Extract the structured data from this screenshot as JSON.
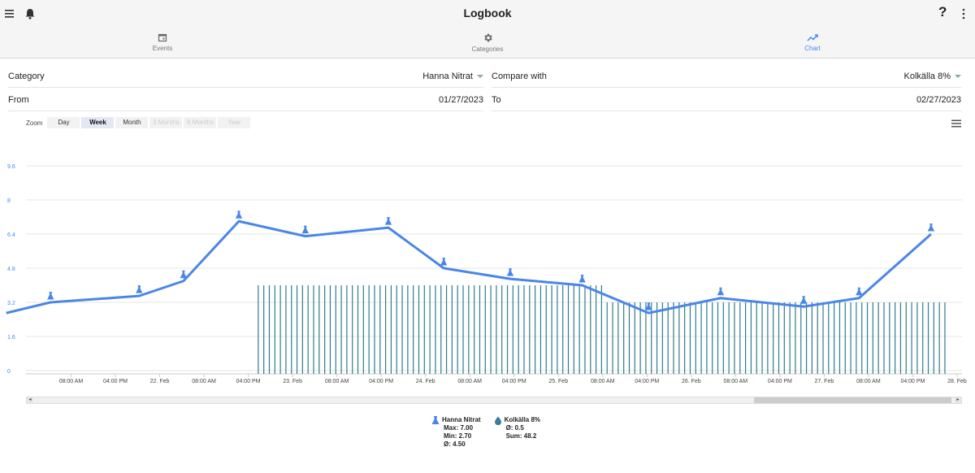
{
  "app": {
    "title": "Logbook"
  },
  "colors": {
    "accent": "#4287f5",
    "line": "#4a86e8",
    "bars": "#2e7d8c"
  },
  "tabs": [
    {
      "label": "Events",
      "icon": "calendar-icon",
      "active": false
    },
    {
      "label": "Categories",
      "icon": "gear-icon",
      "active": false
    },
    {
      "label": "Chart",
      "icon": "trending-up-icon",
      "active": true
    }
  ],
  "form": {
    "category_label": "Category",
    "category_value": "Hanna Nitrat",
    "compare_label": "Compare with",
    "compare_value": "Kolkälla 8%",
    "from_label": "From",
    "from_value": "01/27/2023",
    "to_label": "To",
    "to_value": "02/27/2023"
  },
  "zoom": {
    "label": "Zoom",
    "buttons": [
      {
        "label": "Day",
        "state": "normal"
      },
      {
        "label": "Week",
        "state": "active"
      },
      {
        "label": "Month",
        "state": "normal"
      },
      {
        "label": "3 Months",
        "state": "disabled"
      },
      {
        "label": "6 Months",
        "state": "disabled"
      },
      {
        "label": "Year",
        "state": "disabled"
      }
    ]
  },
  "chart_data": {
    "type": "line",
    "yticks": [
      "0",
      "1.6",
      "3.2",
      "4.8",
      "6.4",
      "8",
      "9.6"
    ],
    "ylim": [
      0,
      9.6
    ],
    "xticks": [
      "08:00 AM",
      "04:00 PM",
      "22. Feb",
      "08:00 AM",
      "04:00 PM",
      "23. Feb",
      "08:00 AM",
      "04:00 PM",
      "24. Feb",
      "08:00 AM",
      "04:00 PM",
      "25. Feb",
      "08:00 AM",
      "04:00 PM",
      "26. Feb",
      "08:00 AM",
      "04:00 PM",
      "27. Feb",
      "08:00 AM",
      "04:00 PM",
      "28. Feb"
    ],
    "xlim_hours": [
      0,
      168
    ],
    "grid": true,
    "series": [
      {
        "name": "Hanna Nitrat",
        "type": "line",
        "x_hours": [
          -4,
          4,
          20,
          28,
          38,
          50,
          65,
          75,
          87,
          100,
          112,
          125,
          140,
          150,
          163
        ],
        "values": [
          2.7,
          3.2,
          3.5,
          4.2,
          7.0,
          6.3,
          6.7,
          4.8,
          4.3,
          4.0,
          2.7,
          3.4,
          3.0,
          3.4,
          6.4
        ]
      },
      {
        "name": "Kolkälla 8%",
        "type": "column",
        "segments": [
          {
            "from_hours": 41.5,
            "to_hours": 104.5,
            "every_hours": 1,
            "value": 4.0
          },
          {
            "from_hours": 104.5,
            "to_hours": 166,
            "every_hours": 1,
            "value": 3.2
          }
        ]
      }
    ]
  },
  "legend": [
    {
      "name": "Hanna Nitrat",
      "icon": "flask-icon",
      "lines": [
        "Max: 7.00",
        "Min: 2.70",
        "Ø: 4.50"
      ]
    },
    {
      "name": "Kolkälla 8%",
      "icon": "drop-icon",
      "lines": [
        "Ø: 0.5",
        "Sum: 48.2"
      ]
    }
  ]
}
